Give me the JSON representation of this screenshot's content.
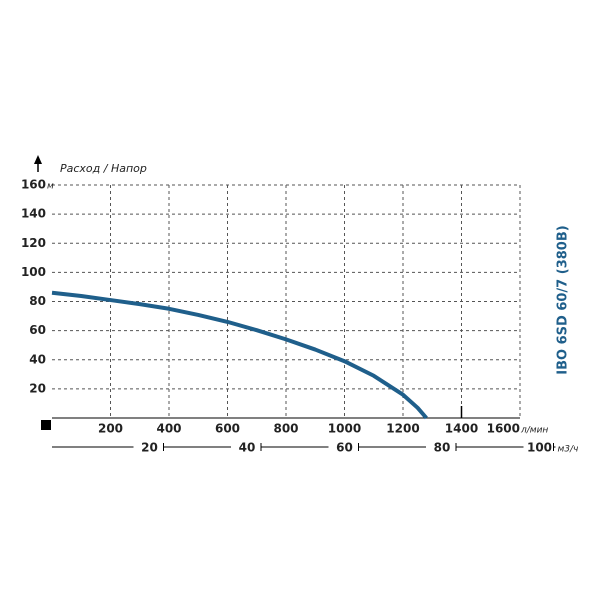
{
  "chart_data": {
    "type": "line",
    "title": "Расход / Напор",
    "y_unit": "м",
    "x_unit": "л/мин",
    "x2_unit": "м3/ч",
    "model_label": "IBO 6SD 60/7 (380B)",
    "x": [
      0,
      100,
      200,
      300,
      400,
      500,
      600,
      700,
      800,
      900,
      1000,
      1100,
      1200,
      1250,
      1280
    ],
    "series": [
      {
        "name": "IBO 6SD 60/7 (380B)",
        "color": "#1f5f8b",
        "values": [
          86,
          83.8,
          81,
          78.2,
          75,
          70.8,
          66,
          60.3,
          54,
          47,
          39,
          29,
          16,
          7,
          0
        ]
      }
    ],
    "xlim": [
      0,
      1600
    ],
    "xticks": [
      200,
      400,
      600,
      800,
      1000,
      1200,
      1400,
      1600
    ],
    "ylim": [
      0,
      160
    ],
    "yticks": [
      20,
      40,
      60,
      80,
      100,
      120,
      140,
      160
    ],
    "x2lim": [
      0,
      96
    ],
    "x2ticks": [
      20,
      40,
      60,
      80,
      100
    ],
    "grid": true
  }
}
